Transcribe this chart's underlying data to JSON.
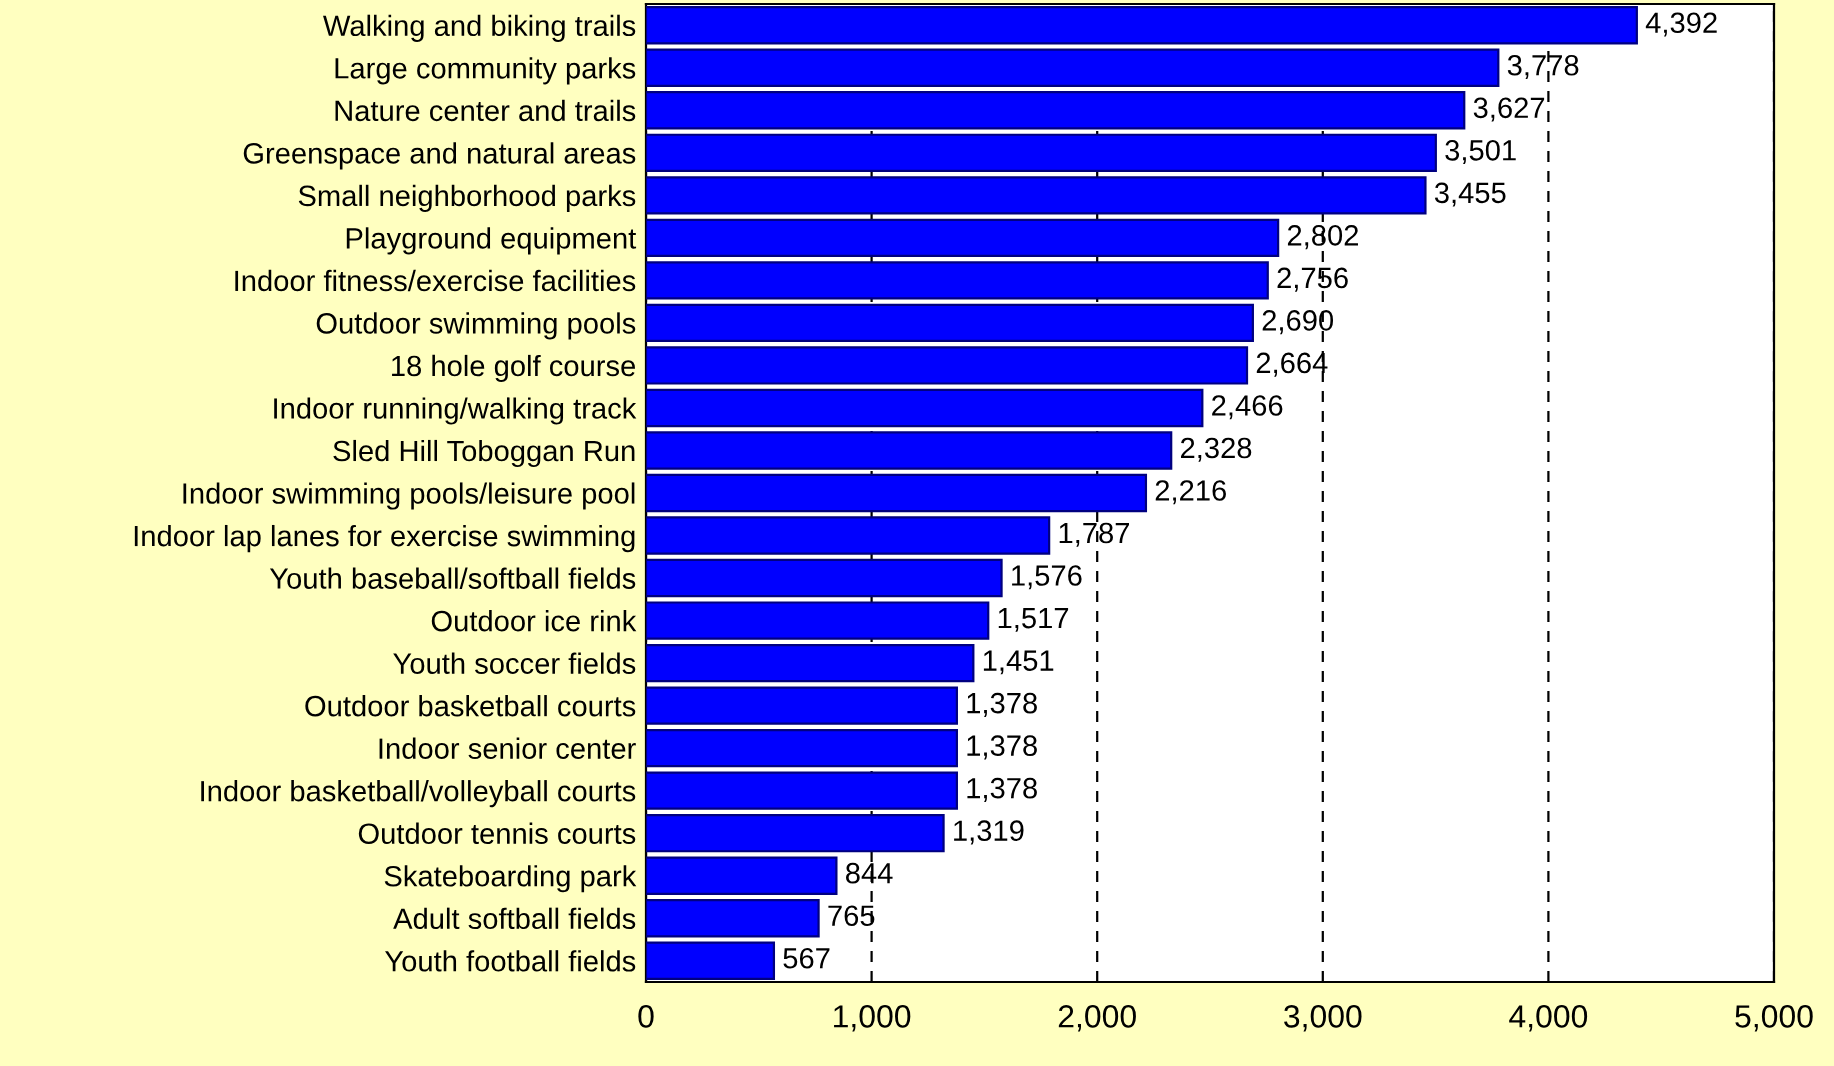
{
  "chart_data": {
    "type": "bar",
    "orientation": "horizontal",
    "categories": [
      "Walking and biking trails",
      "Large community parks",
      "Nature center and trails",
      "Greenspace and natural areas",
      "Small neighborhood parks",
      "Playground equipment",
      "Indoor fitness/exercise facilities",
      "Outdoor swimming pools",
      "18 hole golf course",
      "Indoor running/walking track",
      "Sled Hill Toboggan Run",
      "Indoor swimming pools/leisure pool",
      "Indoor lap lanes for exercise swimming",
      "Youth baseball/softball fields",
      "Outdoor ice rink",
      "Youth soccer fields",
      "Outdoor basketball courts",
      "Indoor senior center",
      "Indoor basketball/volleyball courts",
      "Outdoor tennis courts",
      "Skateboarding park",
      "Adult softball fields",
      "Youth football fields"
    ],
    "values": [
      4392,
      3778,
      3627,
      3501,
      3455,
      2802,
      2756,
      2690,
      2664,
      2466,
      2328,
      2216,
      1787,
      1576,
      1517,
      1451,
      1378,
      1378,
      1378,
      1319,
      844,
      765,
      567
    ],
    "value_labels": [
      "4,392",
      "3,778",
      "3,627",
      "3,501",
      "3,455",
      "2,802",
      "2,756",
      "2,690",
      "2,664",
      "2,466",
      "2,328",
      "2,216",
      "1,787",
      "1,576",
      "1,517",
      "1,451",
      "1,378",
      "1,378",
      "1,378",
      "1,319",
      "844",
      "765",
      "567"
    ],
    "color": "#0000ff",
    "xlim": [
      0,
      5000
    ],
    "xticks": [
      0,
      {
        "value": 1000,
        "label": "1,000"
      },
      {
        "value": 2000,
        "label": "2,000"
      },
      {
        "value": 3000,
        "label": "3,000"
      },
      {
        "value": 4000,
        "label": "4,000"
      },
      {
        "value": 5000,
        "label": "5,000"
      }
    ],
    "grid": "x",
    "legend": false
  }
}
